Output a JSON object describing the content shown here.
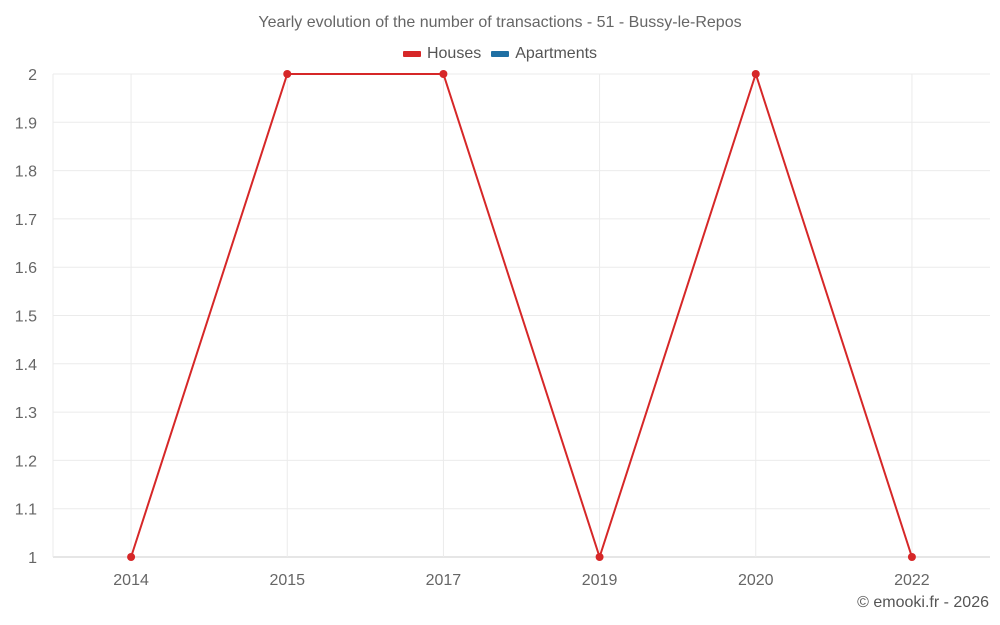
{
  "chart_data": {
    "type": "line",
    "title": "Yearly evolution of the number of transactions - 51 - Bussy-le-Repos",
    "xlabel": "",
    "ylabel": "",
    "categories": [
      "2014",
      "2015",
      "2017",
      "2019",
      "2020",
      "2022"
    ],
    "series": [
      {
        "name": "Houses",
        "color": "#d62728",
        "values": [
          1,
          2,
          2,
          1,
          2,
          1
        ]
      },
      {
        "name": "Apartments",
        "color": "#1f6fa3",
        "values": []
      }
    ],
    "ylim": [
      1,
      2
    ],
    "yticks": [
      "1",
      "1.1",
      "1.2",
      "1.3",
      "1.4",
      "1.5",
      "1.6",
      "1.7",
      "1.8",
      "1.9",
      "2"
    ],
    "grid": true,
    "legend_position": "top"
  },
  "header": {
    "title": "Yearly evolution of the number of transactions - 51 - Bussy-le-Repos"
  },
  "legend": {
    "items": [
      {
        "label": "Houses",
        "color": "#d62728"
      },
      {
        "label": "Apartments",
        "color": "#1f6fa3"
      }
    ]
  },
  "footer": {
    "credit": "© emooki.fr - 2026"
  }
}
